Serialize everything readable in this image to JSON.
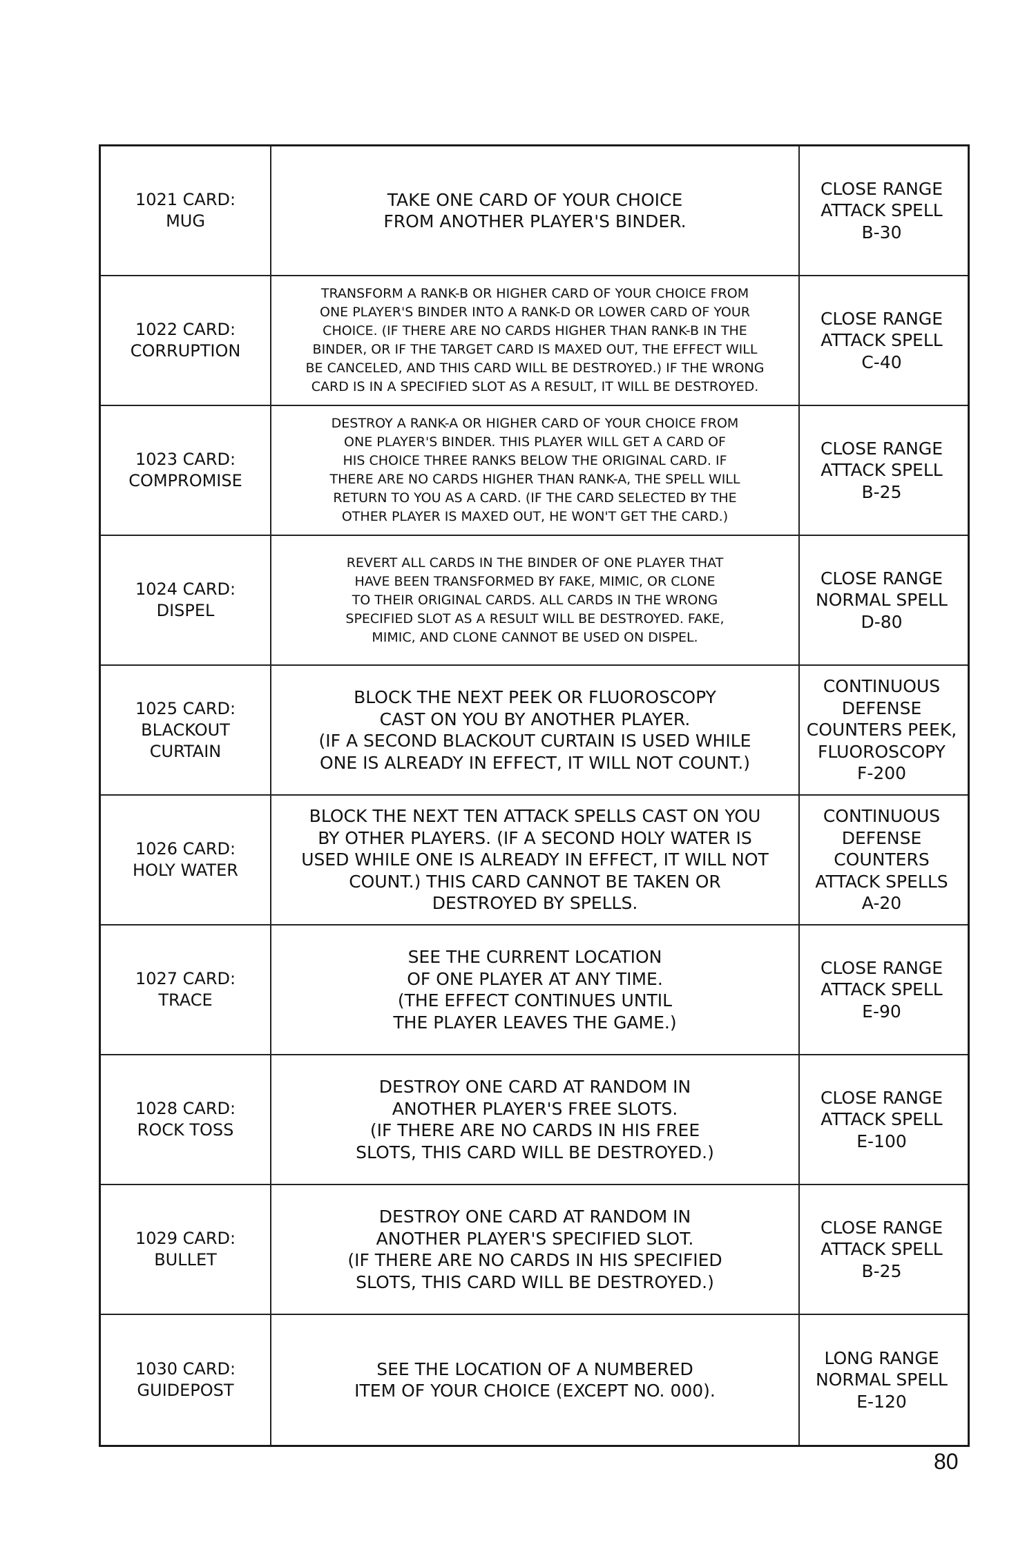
{
  "rows": [
    {
      "name": [
        "1021 CARD:",
        "MUG"
      ],
      "description": [
        "TAKE ONE CARD OF YOUR CHOICE",
        "FROM ANOTHER PLAYER'S BINDER."
      ],
      "type": [
        "CLOSE RANGE",
        "ATTACK SPELL",
        "B-30"
      ],
      "small": false
    },
    {
      "name": [
        "1022 CARD:",
        "CORRUPTION"
      ],
      "description": [
        "TRANSFORM A RANK-B OR HIGHER CARD OF YOUR CHOICE FROM",
        "ONE PLAYER'S BINDER INTO A RANK-D OR LOWER CARD OF YOUR",
        "CHOICE. (IF THERE ARE NO CARDS HIGHER THAN RANK-B IN THE",
        "BINDER, OR IF THE TARGET CARD IS MAXED OUT, THE EFFECT WILL",
        "BE CANCELED, AND THIS CARD WILL BE DESTROYED.) IF THE WRONG",
        "CARD IS IN A SPECIFIED SLOT AS A RESULT, IT WILL BE DESTROYED."
      ],
      "type": [
        "CLOSE RANGE",
        "ATTACK SPELL",
        "C-40"
      ],
      "small": true
    },
    {
      "name": [
        "1023 CARD:",
        "COMPROMISE"
      ],
      "description": [
        "DESTROY A RANK-A OR HIGHER CARD OF YOUR CHOICE FROM",
        "ONE PLAYER'S BINDER. THIS PLAYER WILL GET A CARD OF",
        "HIS CHOICE THREE RANKS BELOW THE ORIGINAL CARD. IF",
        "THERE ARE NO CARDS HIGHER THAN RANK-A, THE SPELL WILL",
        "RETURN TO YOU AS A CARD. (IF THE CARD SELECTED BY THE",
        "OTHER PLAYER IS MAXED OUT, HE WON'T GET THE CARD.)"
      ],
      "type": [
        "CLOSE RANGE",
        "ATTACK SPELL",
        "B-25"
      ],
      "small": true
    },
    {
      "name": [
        "1024 CARD:",
        "DISPEL"
      ],
      "description": [
        "REVERT ALL CARDS IN THE BINDER OF ONE PLAYER THAT",
        "HAVE BEEN TRANSFORMED BY FAKE, MIMIC, OR CLONE",
        "TO THEIR ORIGINAL CARDS. ALL CARDS IN THE WRONG",
        "SPECIFIED SLOT AS A RESULT WILL BE DESTROYED. FAKE,",
        "MIMIC, AND CLONE CANNOT BE USED ON DISPEL."
      ],
      "type": [
        "CLOSE RANGE",
        "NORMAL SPELL",
        "D-80"
      ],
      "small": true
    },
    {
      "name": [
        "1025 CARD:",
        "BLACKOUT",
        "CURTAIN"
      ],
      "description": [
        "BLOCK THE NEXT PEEK OR FLUOROSCOPY",
        "CAST ON YOU BY ANOTHER PLAYER.",
        "(IF A SECOND BLACKOUT CURTAIN IS USED WHILE",
        "ONE IS ALREADY IN EFFECT, IT WILL NOT COUNT.)"
      ],
      "type": [
        "CONTINUOUS",
        "DEFENSE",
        "COUNTERS PEEK,",
        "FLUOROSCOPY",
        "F-200"
      ],
      "small": false
    },
    {
      "name": [
        "1026 CARD:",
        "HOLY WATER"
      ],
      "description": [
        "BLOCK THE NEXT TEN ATTACK SPELLS CAST ON YOU",
        "BY OTHER PLAYERS. (IF A SECOND HOLY WATER IS",
        "USED WHILE ONE IS ALREADY IN EFFECT, IT WILL NOT",
        "COUNT.) THIS CARD CANNOT BE TAKEN OR",
        "DESTROYED BY SPELLS."
      ],
      "type": [
        "CONTINUOUS",
        "DEFENSE",
        "COUNTERS",
        "ATTACK SPELLS",
        "A-20"
      ],
      "small": false
    },
    {
      "name": [
        "1027 CARD:",
        "TRACE"
      ],
      "description": [
        "SEE THE CURRENT LOCATION",
        "OF ONE PLAYER AT ANY TIME.",
        "(THE EFFECT CONTINUES UNTIL",
        "THE PLAYER LEAVES THE GAME.)"
      ],
      "type": [
        "CLOSE RANGE",
        "ATTACK SPELL",
        "E-90"
      ],
      "small": false
    },
    {
      "name": [
        "1028 CARD:",
        "ROCK TOSS"
      ],
      "description": [
        "DESTROY ONE CARD AT RANDOM IN",
        "ANOTHER PLAYER'S FREE SLOTS.",
        "(IF THERE ARE NO CARDS IN HIS FREE",
        "SLOTS, THIS CARD WILL BE DESTROYED.)"
      ],
      "type": [
        "CLOSE RANGE",
        "ATTACK SPELL",
        "E-100"
      ],
      "small": false
    },
    {
      "name": [
        "1029 CARD:",
        "BULLET"
      ],
      "description": [
        "DESTROY ONE CARD AT RANDOM IN",
        "ANOTHER PLAYER'S SPECIFIED SLOT.",
        "(IF THERE ARE NO CARDS IN HIS SPECIFIED",
        "SLOTS, THIS CARD WILL BE DESTROYED.)"
      ],
      "type": [
        "CLOSE RANGE",
        "ATTACK SPELL",
        "B-25"
      ],
      "small": false
    },
    {
      "name": [
        "1030 CARD:",
        "GUIDEPOST"
      ],
      "description": [
        "SEE THE LOCATION OF A NUMBERED",
        "ITEM OF YOUR CHOICE (EXCEPT NO. 000)."
      ],
      "type": [
        "LONG RANGE",
        "NORMAL SPELL",
        "E-120"
      ],
      "small": false
    }
  ],
  "page_number": "80"
}
